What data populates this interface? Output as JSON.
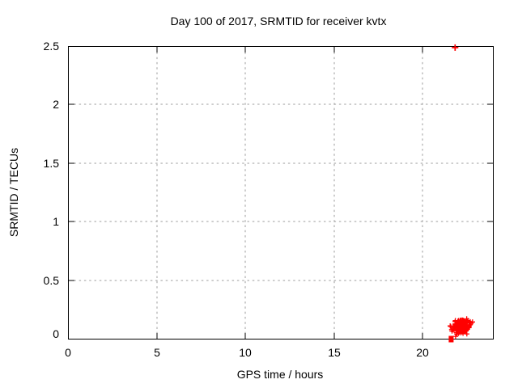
{
  "chart_data": {
    "type": "scatter",
    "title": "Day 100 of 2017, SRMTID for receiver kvtx",
    "xlabel": "GPS time / hours",
    "ylabel": "SRMTID / TECUs",
    "xlim": [
      0,
      24
    ],
    "ylim": [
      0,
      2.5
    ],
    "x_ticks": [
      0,
      5,
      10,
      15,
      20
    ],
    "x_tick_labels": [
      "0",
      "5",
      "10",
      "15",
      "20"
    ],
    "y_ticks": [
      0,
      0.5,
      1,
      1.5,
      2,
      2.5
    ],
    "y_tick_labels": [
      "0",
      "0.5",
      "1",
      "1.5",
      "2",
      "2.5"
    ],
    "grid": true,
    "grid_style": "dashed",
    "legend": "none",
    "colors": {
      "marker": "#ff0000",
      "grid": "#9e9e9e",
      "axis": "#000000",
      "text": "#000000",
      "background": "#ffffff"
    },
    "series": [
      {
        "name": "SRMTID",
        "marker": "plus",
        "outlier_points": [
          [
            21.84,
            2.49
          ]
        ],
        "square_points": [
          [
            21.62,
            0.0
          ]
        ],
        "cluster": {
          "description": "dense blob of overlapping + markers",
          "count": 200,
          "center_x": 22.2,
          "center_y": 0.105,
          "sigma_x": 0.25,
          "sigma_y": 0.028,
          "x_min": 21.45,
          "x_max": 23.0,
          "y_min": 0.02,
          "y_max": 0.195,
          "seed": 2017100
        }
      }
    ],
    "annotations": {
      "outlier": "single red + marker touching top border near x=21.8, y=2.49",
      "square": "small filled red square straddling the x-axis near x=21.6, y=0",
      "cluster": "red + cluster spanning x 21.5-23.0 h, y 0.03-0.19 TECUs"
    }
  }
}
